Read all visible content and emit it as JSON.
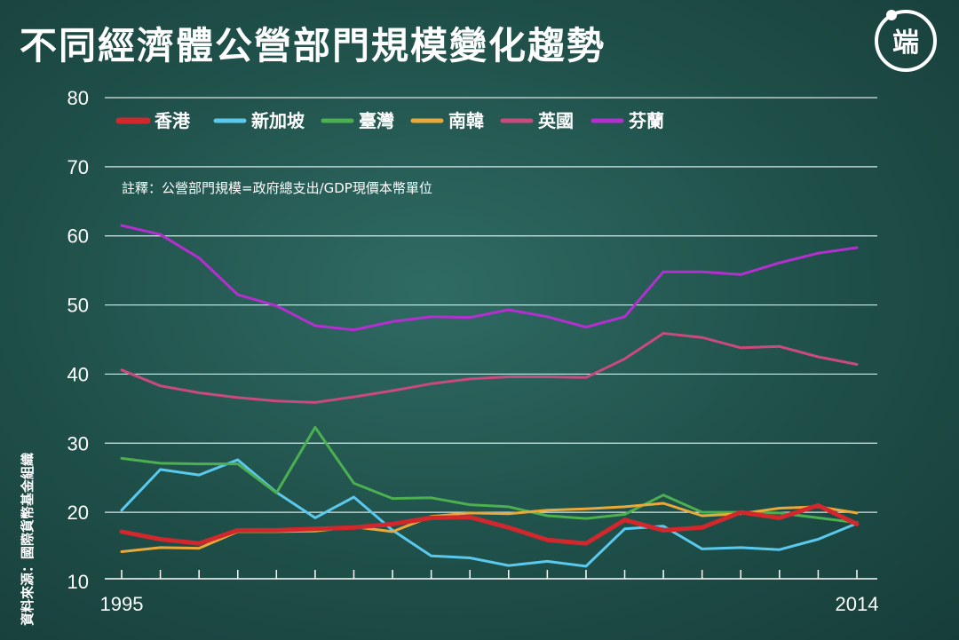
{
  "title": "不同經濟體公營部門規模變化趨勢",
  "source": "資料來源：國際貨幣基金組織",
  "logo": {
    "icon": "initium-logo-icon",
    "text": "端"
  },
  "chart_data": {
    "type": "line",
    "note": "註釋：公營部門規模=政府總支出/GDP現價本幣單位",
    "x": [
      1995,
      1996,
      1997,
      1998,
      1999,
      2000,
      2001,
      2002,
      2003,
      2004,
      2005,
      2006,
      2007,
      2008,
      2009,
      2010,
      2011,
      2012,
      2013,
      2014
    ],
    "x_tick_labels": [
      "1995",
      "2014"
    ],
    "ylim": [
      10,
      80
    ],
    "y_ticks": [
      10,
      20,
      30,
      40,
      50,
      60,
      70,
      80
    ],
    "grid": true,
    "legend_position": "top-left",
    "series": [
      {
        "name": "香港",
        "color": "#d0282d",
        "width": 5,
        "values": [
          17.2,
          16.1,
          15.5,
          17.4,
          17.4,
          17.6,
          17.8,
          18.3,
          19.2,
          19.3,
          17.8,
          16.0,
          15.5,
          18.9,
          17.4,
          17.8,
          20.0,
          19.2,
          21.0,
          18.3
        ]
      },
      {
        "name": "新加坡",
        "color": "#5bc8ee",
        "width": 3,
        "values": [
          20.3,
          26.2,
          25.4,
          27.6,
          22.9,
          19.2,
          22.2,
          17.4,
          13.7,
          13.4,
          12.3,
          12.9,
          12.2,
          17.6,
          18.0,
          14.7,
          14.9,
          14.6,
          16.1,
          18.4
        ]
      },
      {
        "name": "臺灣",
        "color": "#4caf50",
        "width": 3,
        "values": [
          27.8,
          27.1,
          27.0,
          27.0,
          22.8,
          32.3,
          24.2,
          22.0,
          22.1,
          21.1,
          20.8,
          19.5,
          19.1,
          19.7,
          22.5,
          20.0,
          20.0,
          19.9,
          19.2,
          18.5
        ]
      },
      {
        "name": "南韓",
        "color": "#e8a93a",
        "width": 3,
        "values": [
          14.3,
          14.9,
          14.8,
          17.2,
          17.2,
          17.3,
          17.9,
          17.2,
          19.4,
          19.9,
          19.8,
          20.3,
          20.5,
          20.8,
          21.3,
          19.5,
          19.8,
          20.6,
          20.8,
          19.9
        ]
      },
      {
        "name": "英國",
        "color": "#c94a7c",
        "width": 3,
        "values": [
          40.6,
          38.3,
          37.3,
          36.6,
          36.1,
          35.9,
          36.7,
          37.6,
          38.6,
          39.3,
          39.6,
          39.6,
          39.5,
          42.2,
          45.9,
          45.3,
          43.8,
          44.0,
          42.5,
          41.4
        ]
      },
      {
        "name": "芬蘭",
        "color": "#b42fd0",
        "width": 3,
        "values": [
          61.5,
          60.2,
          56.8,
          51.5,
          49.9,
          47.0,
          46.4,
          47.6,
          48.3,
          48.2,
          49.3,
          48.3,
          46.8,
          48.3,
          54.8,
          54.8,
          54.4,
          56.1,
          57.5,
          58.3
        ]
      }
    ]
  }
}
